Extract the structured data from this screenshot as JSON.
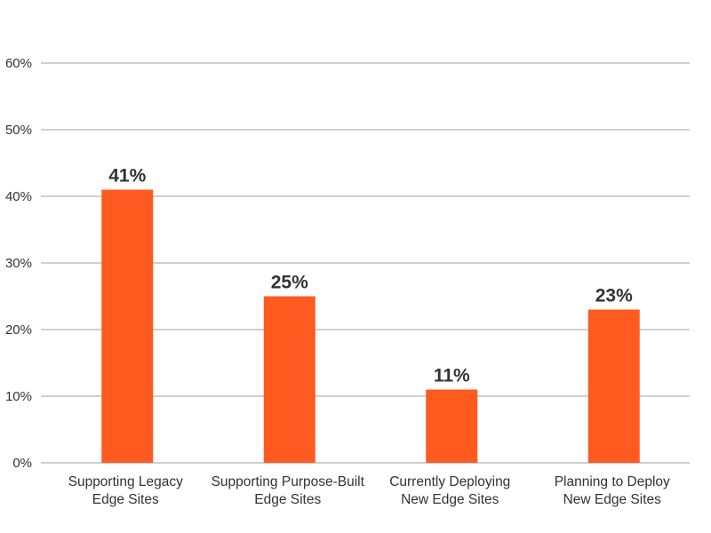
{
  "chart_data": {
    "type": "bar",
    "title": "",
    "xlabel": "",
    "ylabel": "",
    "categories": [
      [
        "Supporting Legacy",
        "Edge Sites"
      ],
      [
        "Supporting Purpose-Built",
        "Edge Sites"
      ],
      [
        "Currently Deploying",
        "New Edge Sites"
      ],
      [
        "Planning to Deploy",
        "New Edge Sites"
      ]
    ],
    "values": [
      41,
      25,
      11,
      23
    ],
    "value_labels": [
      "41%",
      "25%",
      "11%",
      "23%"
    ],
    "ylim": [
      0,
      60
    ],
    "yticks": [
      0,
      10,
      20,
      30,
      40,
      50,
      60
    ],
    "ytick_labels": [
      "0%",
      "10%",
      "20%",
      "30%",
      "40%",
      "50%",
      "60%"
    ],
    "grid": true,
    "legend": "none",
    "colors": {
      "bar": "#FF5A1F",
      "grid": "#cfcfcf",
      "text": "#333333"
    }
  }
}
